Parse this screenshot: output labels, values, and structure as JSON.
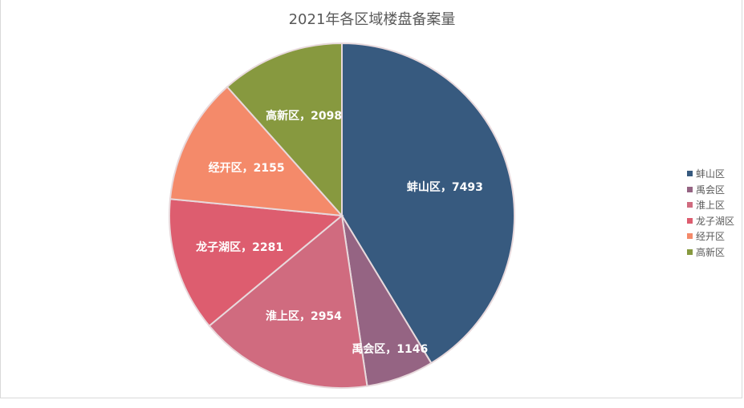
{
  "chart_data": {
    "type": "pie",
    "title": "2021年各区域楼盘备案量",
    "categories": [
      "蚌山区",
      "禹会区",
      "淮上区",
      "龙子湖区",
      "经开区",
      "高新区"
    ],
    "values": [
      7493,
      1146,
      2954,
      2281,
      2155,
      2098
    ],
    "colors": [
      "#375A7F",
      "#956483",
      "#D06B7F",
      "#DD5D6F",
      "#F48A6A",
      "#87993F"
    ],
    "labels": [
      "蚌山区，7493",
      "禹会区，1146",
      "淮上区，2954",
      "龙子湖区，2281",
      "经开区，2155",
      "高新区，2098"
    ],
    "legend_position": "right",
    "start_angle": "12 o'clock, clockwise"
  },
  "legend": {
    "items": [
      "蚌山区",
      "禹会区",
      "淮上区",
      "龙子湖区",
      "经开区",
      "高新区"
    ]
  }
}
